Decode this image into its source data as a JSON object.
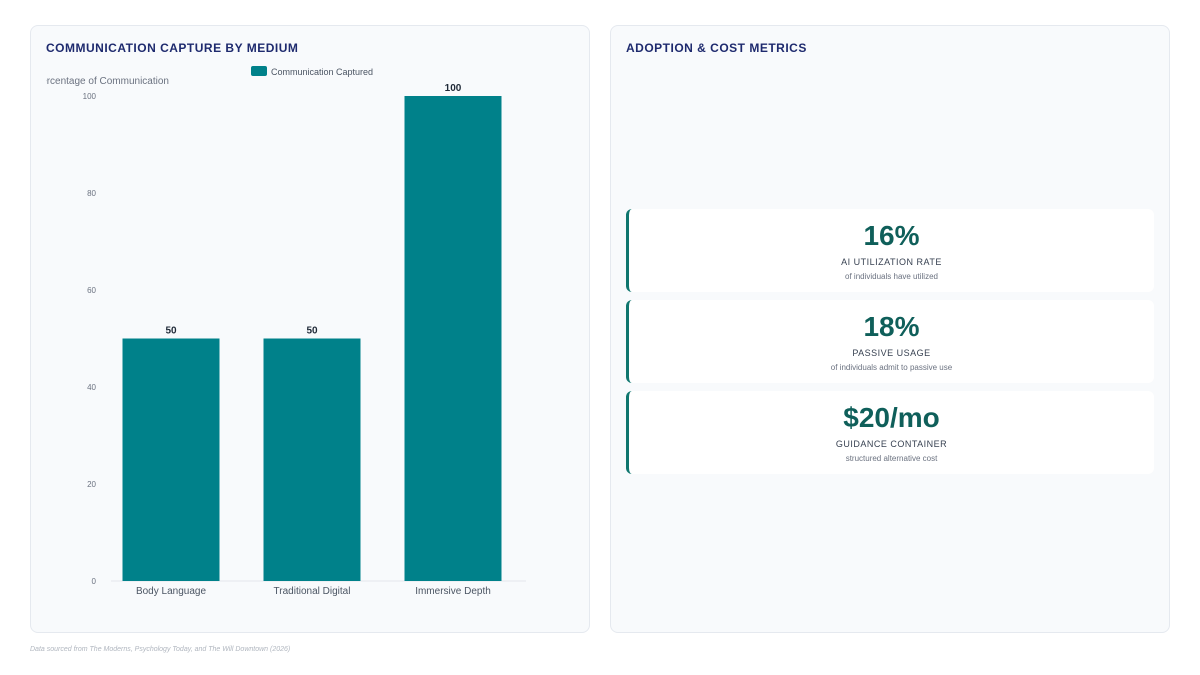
{
  "left_panel": {
    "title": "COMMUNICATION CAPTURE BY MEDIUM"
  },
  "right_panel": {
    "title": "ADOPTION & COST METRICS",
    "metrics": [
      {
        "value": "16%",
        "label": "AI UTILIZATION RATE",
        "sub": "of individuals have utilized"
      },
      {
        "value": "18%",
        "label": "PASSIVE USAGE",
        "sub": "of individuals admit to passive use"
      },
      {
        "value": "$20/mo",
        "label": "GUIDANCE CONTAINER",
        "sub": "structured alternative cost"
      }
    ],
    "accent_color": "#0f766e",
    "value_color": "#0f5f5a"
  },
  "chart_data": {
    "type": "bar",
    "categories": [
      "Body Language",
      "Traditional Digital",
      "Immersive Depth"
    ],
    "series": [
      {
        "name": "Communication Captured",
        "values": [
          50,
          50,
          100
        ],
        "color": "#00818a"
      }
    ],
    "ylabel": "Percentage of Communication",
    "xlabel": "",
    "ylim": [
      0,
      100
    ],
    "yticks": [
      0,
      20,
      40,
      60,
      80,
      100
    ],
    "data_labels": true,
    "grid": false,
    "legend_position": "top"
  },
  "footnote": "Data sourced from The Moderns, Psychology Today, and The Will Downtown (2026)"
}
